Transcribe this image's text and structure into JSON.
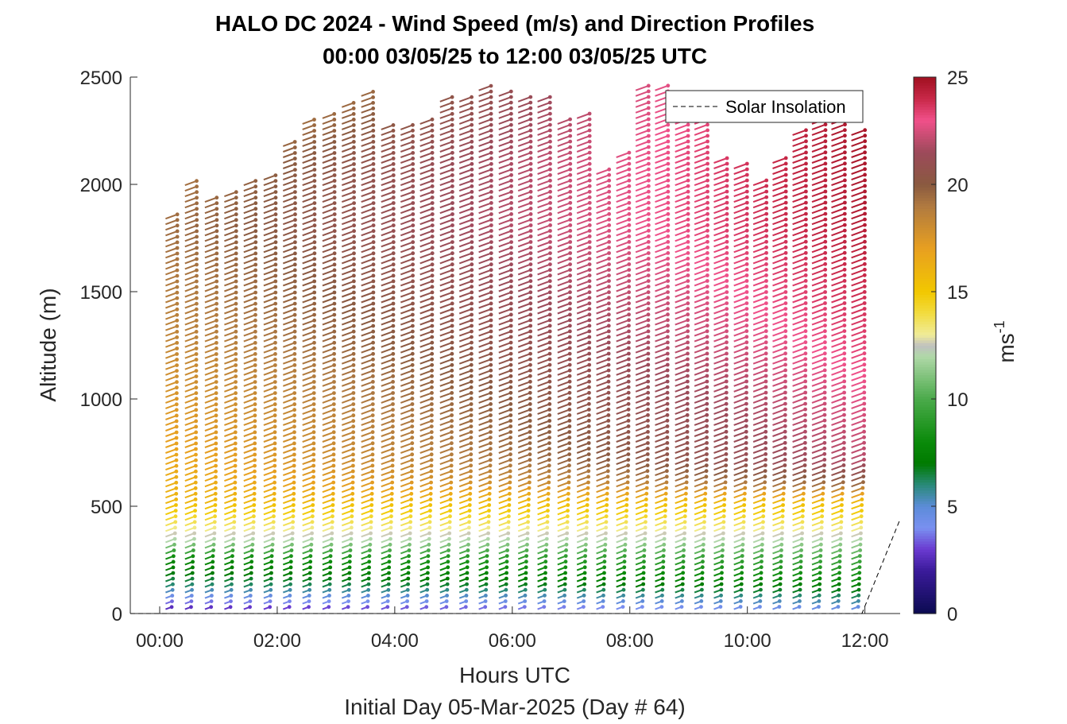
{
  "chart_data": {
    "type": "wind-barb-profile",
    "title": "HALO DC 2024 - Wind Speed (m/s) and Direction Profiles",
    "subtitle": "00:00 03/05/25 to 12:00 03/05/25  UTC",
    "xlabel": "Hours UTC",
    "xlabel2": "Initial Day 05-Mar-2025 (Day # 64)",
    "ylabel": "Altitude (m)",
    "xlim": [
      -0.5,
      12.6
    ],
    "ylim": [
      0,
      2500
    ],
    "x_ticks": [
      0,
      2,
      4,
      6,
      8,
      10,
      12
    ],
    "x_tick_labels": [
      "00:00",
      "02:00",
      "04:00",
      "06:00",
      "08:00",
      "10:00",
      "12:00"
    ],
    "y_ticks": [
      0,
      500,
      1000,
      1500,
      2000,
      2500
    ],
    "y_tick_labels": [
      "0",
      "500",
      "1000",
      "1500",
      "2000",
      "2500"
    ],
    "colorbar": {
      "label": "ms",
      "label_exponent": "-1",
      "range": [
        0,
        25
      ],
      "ticks": [
        0,
        5,
        10,
        15,
        20,
        25
      ],
      "tick_labels": [
        "0",
        "5",
        "10",
        "15",
        "20",
        "25"
      ],
      "colormap": [
        [
          0,
          "#0a0a50"
        ],
        [
          2,
          "#3a1a9a"
        ],
        [
          3,
          "#6a3ad0"
        ],
        [
          4,
          "#7a90f0"
        ],
        [
          5,
          "#5c8cd8"
        ],
        [
          6,
          "#2a8a7a"
        ],
        [
          7,
          "#007a00"
        ],
        [
          8,
          "#0a8a0a"
        ],
        [
          10,
          "#4aaa4a"
        ],
        [
          12,
          "#b0d8a8"
        ],
        [
          12.5,
          "#c0c0c0"
        ],
        [
          13,
          "#f0ec98"
        ],
        [
          14,
          "#f2dc40"
        ],
        [
          15,
          "#f2c800"
        ],
        [
          17,
          "#e8a020"
        ],
        [
          19,
          "#b07a40"
        ],
        [
          20,
          "#8a5a40"
        ],
        [
          21.5,
          "#9c4a5a"
        ],
        [
          23,
          "#f0508a"
        ],
        [
          24,
          "#c82848"
        ],
        [
          25,
          "#a01020"
        ]
      ]
    },
    "legend": {
      "entries": [
        "Solar Insolation"
      ],
      "location": "top-right"
    },
    "solar_insolation": {
      "x": [
        -0.5,
        11.95,
        12.6
      ],
      "y": [
        0,
        0,
        440
      ],
      "style": "dashed"
    },
    "profiles": {
      "times": [
        0.1,
        0.43,
        0.77,
        1.1,
        1.43,
        1.77,
        2.1,
        2.43,
        2.77,
        3.1,
        3.43,
        3.77,
        4.1,
        4.43,
        4.77,
        5.1,
        5.43,
        5.77,
        6.1,
        6.43,
        6.77,
        7.1,
        7.43,
        7.77,
        8.1,
        8.43,
        8.77,
        9.1,
        9.43,
        9.77,
        10.1,
        10.43,
        10.77,
        11.1,
        11.43,
        11.77
      ],
      "top_altitude": [
        1840,
        2000,
        1940,
        1950,
        2000,
        2040,
        2180,
        2290,
        2310,
        2360,
        2420,
        2280,
        2260,
        2300,
        2400,
        2410,
        2440,
        2420,
        2400,
        2400,
        2300,
        2320,
        2060,
        2140,
        2460,
        2440,
        2360,
        2320,
        2100,
        2080,
        2000,
        2110,
        2240,
        2330,
        2340,
        2240
      ],
      "bottom_altitude": 20,
      "altitude_step": 26,
      "direction_from_deg": 250,
      "speed_profile_early": [
        [
          0,
          2
        ],
        [
          60,
          4
        ],
        [
          120,
          6
        ],
        [
          250,
          8
        ],
        [
          330,
          12
        ],
        [
          420,
          14
        ],
        [
          520,
          16
        ],
        [
          800,
          17
        ],
        [
          1300,
          18.5
        ],
        [
          1800,
          19.5
        ],
        [
          2100,
          19
        ],
        [
          2500,
          17
        ]
      ],
      "speed_profile_late": [
        [
          0,
          4
        ],
        [
          60,
          6
        ],
        [
          150,
          8
        ],
        [
          260,
          10
        ],
        [
          330,
          12
        ],
        [
          420,
          14
        ],
        [
          520,
          16
        ],
        [
          600,
          20
        ],
        [
          700,
          22
        ],
        [
          900,
          22.5
        ],
        [
          1300,
          23.5
        ],
        [
          1800,
          24.5
        ],
        [
          2500,
          25
        ]
      ]
    }
  }
}
